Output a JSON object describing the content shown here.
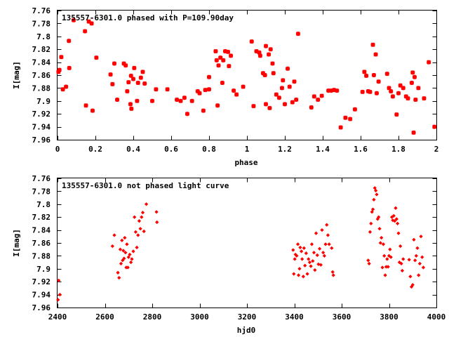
{
  "chart_data": [
    {
      "type": "scatter",
      "title": "135557-6301.0 phased with P=109.90day",
      "xlabel": "phase",
      "ylabel": "I[mag]",
      "xlim": [
        0,
        2
      ],
      "ylim": [
        7.76,
        7.96
      ],
      "y_inverted": true,
      "grid": false,
      "marker_color": "#ff0000",
      "xticks": [
        "0",
        "0.2",
        "0.4",
        "0.6",
        "0.8",
        "1",
        "1.2",
        "1.4",
        "1.6",
        "1.8",
        "2"
      ],
      "yticks": [
        "7.76",
        "7.78",
        "7.8",
        "7.82",
        "7.84",
        "7.86",
        "7.88",
        "7.9",
        "7.92",
        "7.94",
        "7.96"
      ],
      "points": [
        [
          0.005,
          7.855
        ],
        [
          0.01,
          7.852
        ],
        [
          0.02,
          7.832
        ],
        [
          0.028,
          7.882
        ],
        [
          0.045,
          7.878
        ],
        [
          0.06,
          7.807
        ],
        [
          0.062,
          7.849
        ],
        [
          0.085,
          7.775
        ],
        [
          0.145,
          7.792
        ],
        [
          0.15,
          7.907
        ],
        [
          0.165,
          7.777
        ],
        [
          0.18,
          7.78
        ],
        [
          0.185,
          7.915
        ],
        [
          0.205,
          7.833
        ],
        [
          0.28,
          7.859
        ],
        [
          0.29,
          7.874
        ],
        [
          0.3,
          7.842
        ],
        [
          0.315,
          7.898
        ],
        [
          0.35,
          7.842
        ],
        [
          0.36,
          7.845
        ],
        [
          0.368,
          7.885
        ],
        [
          0.375,
          7.871
        ],
        [
          0.385,
          7.905
        ],
        [
          0.388,
          7.861
        ],
        [
          0.39,
          7.912
        ],
        [
          0.4,
          7.866
        ],
        [
          0.405,
          7.849
        ],
        [
          0.42,
          7.9
        ],
        [
          0.425,
          7.872
        ],
        [
          0.44,
          7.864
        ],
        [
          0.45,
          7.855
        ],
        [
          0.46,
          7.873
        ],
        [
          0.5,
          7.9
        ],
        [
          0.52,
          7.882
        ],
        [
          0.58,
          7.882
        ],
        [
          0.63,
          7.898
        ],
        [
          0.65,
          7.9
        ],
        [
          0.67,
          7.895
        ],
        [
          0.685,
          7.92
        ],
        [
          0.71,
          7.9
        ],
        [
          0.74,
          7.885
        ],
        [
          0.75,
          7.888
        ],
        [
          0.77,
          7.915
        ],
        [
          0.78,
          7.883
        ],
        [
          0.8,
          7.863
        ],
        [
          0.8,
          7.882
        ],
        [
          0.835,
          7.823
        ],
        [
          0.84,
          7.837
        ],
        [
          0.845,
          7.907
        ],
        [
          0.85,
          7.845
        ],
        [
          0.86,
          7.833
        ],
        [
          0.87,
          7.872
        ],
        [
          0.875,
          7.837
        ],
        [
          0.885,
          7.823
        ],
        [
          0.9,
          7.824
        ],
        [
          0.905,
          7.846
        ],
        [
          0.915,
          7.83
        ],
        [
          0.93,
          7.884
        ],
        [
          0.945,
          7.89
        ],
        [
          0.98,
          7.878
        ],
        [
          1.025,
          7.808
        ],
        [
          1.035,
          7.908
        ],
        [
          1.05,
          7.823
        ],
        [
          1.065,
          7.825
        ],
        [
          1.07,
          7.83
        ],
        [
          1.085,
          7.857
        ],
        [
          1.095,
          7.86
        ],
        [
          1.1,
          7.815
        ],
        [
          1.1,
          7.905
        ],
        [
          1.115,
          7.828
        ],
        [
          1.12,
          7.911
        ],
        [
          1.125,
          7.82
        ],
        [
          1.135,
          7.842
        ],
        [
          1.14,
          7.857
        ],
        [
          1.155,
          7.89
        ],
        [
          1.17,
          7.895
        ],
        [
          1.185,
          7.88
        ],
        [
          1.19,
          7.868
        ],
        [
          1.2,
          7.905
        ],
        [
          1.215,
          7.85
        ],
        [
          1.225,
          7.878
        ],
        [
          1.24,
          7.902
        ],
        [
          1.25,
          7.87
        ],
        [
          1.26,
          7.898
        ],
        [
          1.27,
          7.796
        ],
        [
          1.34,
          7.91
        ],
        [
          1.355,
          7.893
        ],
        [
          1.375,
          7.898
        ],
        [
          1.395,
          7.892
        ],
        [
          1.43,
          7.884
        ],
        [
          1.445,
          7.884
        ],
        [
          1.46,
          7.883
        ],
        [
          1.475,
          7.884
        ],
        [
          1.495,
          7.941
        ],
        [
          1.52,
          7.926
        ],
        [
          1.545,
          7.928
        ],
        [
          1.57,
          7.913
        ],
        [
          1.61,
          7.886
        ],
        [
          1.62,
          7.855
        ],
        [
          1.63,
          7.861
        ],
        [
          1.64,
          7.885
        ],
        [
          1.65,
          7.886
        ],
        [
          1.665,
          7.813
        ],
        [
          1.67,
          7.86
        ],
        [
          1.68,
          7.828
        ],
        [
          1.685,
          7.888
        ],
        [
          1.695,
          7.87
        ],
        [
          1.74,
          7.858
        ],
        [
          1.75,
          7.88
        ],
        [
          1.76,
          7.885
        ],
        [
          1.77,
          7.893
        ],
        [
          1.79,
          7.921
        ],
        [
          1.8,
          7.888
        ],
        [
          1.81,
          7.876
        ],
        [
          1.825,
          7.88
        ],
        [
          1.84,
          7.893
        ],
        [
          1.85,
          7.896
        ],
        [
          1.87,
          7.872
        ],
        [
          1.875,
          7.856
        ],
        [
          1.88,
          7.949
        ],
        [
          1.885,
          7.863
        ],
        [
          1.89,
          7.898
        ],
        [
          1.905,
          7.88
        ],
        [
          1.935,
          7.896
        ],
        [
          1.96,
          7.84
        ],
        [
          1.99,
          7.94
        ]
      ]
    },
    {
      "type": "scatter",
      "title": "135557-6301.0 not phased light curve",
      "xlabel": "hjd0",
      "ylabel": "I[mag]",
      "xlim": [
        2400,
        4000
      ],
      "ylim": [
        7.76,
        7.96
      ],
      "y_inverted": true,
      "grid": false,
      "marker_color": "#ff0000",
      "xticks": [
        "2400",
        "2600",
        "2800",
        "3000",
        "3200",
        "3400",
        "3600",
        "3800",
        "4000"
      ],
      "yticks": [
        "7.76",
        "7.78",
        "7.8",
        "7.82",
        "7.84",
        "7.86",
        "7.88",
        "7.9",
        "7.92",
        "7.94",
        "7.96"
      ],
      "points": [
        [
          2402,
          7.948
        ],
        [
          2405,
          7.918
        ],
        [
          2410,
          7.94
        ],
        [
          2632,
          7.865
        ],
        [
          2640,
          7.848
        ],
        [
          2655,
          7.906
        ],
        [
          2660,
          7.914
        ],
        [
          2665,
          7.87
        ],
        [
          2668,
          7.892
        ],
        [
          2672,
          7.856
        ],
        [
          2675,
          7.887
        ],
        [
          2678,
          7.872
        ],
        [
          2681,
          7.884
        ],
        [
          2684,
          7.852
        ],
        [
          2687,
          7.875
        ],
        [
          2690,
          7.898
        ],
        [
          2693,
          7.862
        ],
        [
          2697,
          7.898
        ],
        [
          2700,
          7.882
        ],
        [
          2705,
          7.878
        ],
        [
          2710,
          7.89
        ],
        [
          2714,
          7.885
        ],
        [
          2720,
          7.873
        ],
        [
          2725,
          7.82
        ],
        [
          2730,
          7.843
        ],
        [
          2735,
          7.867
        ],
        [
          2740,
          7.848
        ],
        [
          2745,
          7.826
        ],
        [
          2750,
          7.838
        ],
        [
          2755,
          7.82
        ],
        [
          2760,
          7.813
        ],
        [
          2765,
          7.842
        ],
        [
          2775,
          7.8
        ],
        [
          2818,
          7.812
        ],
        [
          2820,
          7.828
        ],
        [
          3395,
          7.871
        ],
        [
          3398,
          7.908
        ],
        [
          3402,
          7.885
        ],
        [
          3405,
          7.878
        ],
        [
          3410,
          7.88
        ],
        [
          3415,
          7.862
        ],
        [
          3418,
          7.91
        ],
        [
          3422,
          7.9
        ],
        [
          3425,
          7.867
        ],
        [
          3430,
          7.873
        ],
        [
          3433,
          7.885
        ],
        [
          3438,
          7.912
        ],
        [
          3441,
          7.868
        ],
        [
          3445,
          7.895
        ],
        [
          3450,
          7.876
        ],
        [
          3455,
          7.908
        ],
        [
          3460,
          7.885
        ],
        [
          3465,
          7.89
        ],
        [
          3470,
          7.896
        ],
        [
          3474,
          7.862
        ],
        [
          3478,
          7.888
        ],
        [
          3483,
          7.875
        ],
        [
          3487,
          7.902
        ],
        [
          3492,
          7.845
        ],
        [
          3497,
          7.879
        ],
        [
          3502,
          7.893
        ],
        [
          3507,
          7.869
        ],
        [
          3512,
          7.894
        ],
        [
          3517,
          7.84
        ],
        [
          3522,
          7.875
        ],
        [
          3527,
          7.88
        ],
        [
          3532,
          7.862
        ],
        [
          3537,
          7.832
        ],
        [
          3542,
          7.848
        ],
        [
          3547,
          7.862
        ],
        [
          3558,
          7.868
        ],
        [
          3562,
          7.905
        ],
        [
          3565,
          7.91
        ],
        [
          3712,
          7.887
        ],
        [
          3716,
          7.892
        ],
        [
          3720,
          7.843
        ],
        [
          3724,
          7.83
        ],
        [
          3728,
          7.812
        ],
        [
          3732,
          7.808
        ],
        [
          3736,
          7.793
        ],
        [
          3740,
          7.775
        ],
        [
          3744,
          7.779
        ],
        [
          3748,
          7.785
        ],
        [
          3752,
          7.823
        ],
        [
          3756,
          7.82
        ],
        [
          3760,
          7.838
        ],
        [
          3764,
          7.86
        ],
        [
          3768,
          7.852
        ],
        [
          3772,
          7.898
        ],
        [
          3776,
          7.862
        ],
        [
          3780,
          7.88
        ],
        [
          3784,
          7.91
        ],
        [
          3788,
          7.897
        ],
        [
          3792,
          7.885
        ],
        [
          3796,
          7.897
        ],
        [
          3800,
          7.88
        ],
        [
          3804,
          7.87
        ],
        [
          3808,
          7.882
        ],
        [
          3812,
          7.82
        ],
        [
          3816,
          7.825
        ],
        [
          3820,
          7.818
        ],
        [
          3824,
          7.826
        ],
        [
          3828,
          7.806
        ],
        [
          3832,
          7.823
        ],
        [
          3836,
          7.83
        ],
        [
          3840,
          7.845
        ],
        [
          3844,
          7.89
        ],
        [
          3848,
          7.865
        ],
        [
          3852,
          7.892
        ],
        [
          3856,
          7.903
        ],
        [
          3860,
          7.885
        ],
        [
          3885,
          7.886
        ],
        [
          3890,
          7.912
        ],
        [
          3895,
          7.928
        ],
        [
          3900,
          7.925
        ],
        [
          3905,
          7.855
        ],
        [
          3910,
          7.887
        ],
        [
          3915,
          7.88
        ],
        [
          3920,
          7.868
        ],
        [
          3925,
          7.91
        ],
        [
          3930,
          7.892
        ],
        [
          3935,
          7.85
        ],
        [
          3940,
          7.882
        ],
        [
          3945,
          7.898
        ]
      ]
    }
  ]
}
